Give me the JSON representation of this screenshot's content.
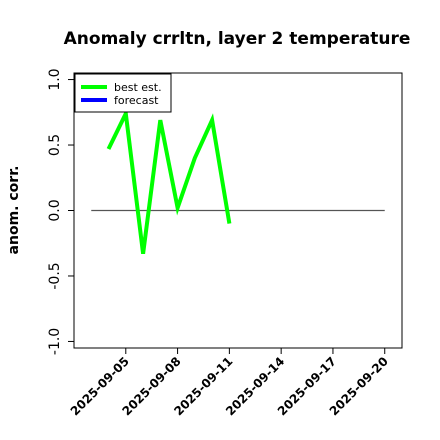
{
  "chart_data": {
    "type": "line",
    "title": "Anomaly crrltn, layer 2 temperature",
    "ylabel": "anom. corr.",
    "ylim": [
      -1.05,
      1.05
    ],
    "yticks": [
      {
        "value": -1.0,
        "label": "-1.0"
      },
      {
        "value": -0.5,
        "label": "-0.5"
      },
      {
        "value": 0.0,
        "label": "0.0"
      },
      {
        "value": 0.5,
        "label": "0.5"
      },
      {
        "value": 1.0,
        "label": "1.0"
      }
    ],
    "xlim": [
      "2025-09-02",
      "2025-09-21"
    ],
    "xticks": [
      {
        "date": "2025-09-05",
        "label": "2025-09-05",
        "color": "#000000"
      },
      {
        "date": "2025-09-08",
        "label": "2025-09-08",
        "color": "#000000"
      },
      {
        "date": "2025-09-11",
        "label": "2025-09-11",
        "color": "#228B22"
      },
      {
        "date": "2025-09-14",
        "label": "2025-09-14",
        "color": "#000000"
      },
      {
        "date": "2025-09-17",
        "label": "2025-09-17",
        "color": "#000000"
      },
      {
        "date": "2025-09-20",
        "label": "2025-09-20",
        "color": "#000000"
      }
    ],
    "reference_line": {
      "y": 0.0,
      "from": "2025-09-03",
      "to": "2025-09-20",
      "color": "#555555"
    },
    "series": [
      {
        "name": "best est.",
        "color": "#00FF00",
        "points": [
          {
            "x": "2025-09-04",
            "y": 0.47
          },
          {
            "x": "2025-09-05",
            "y": 0.74
          },
          {
            "x": "2025-09-06",
            "y": -0.33
          },
          {
            "x": "2025-09-07",
            "y": 0.69
          },
          {
            "x": "2025-09-08",
            "y": 0.02
          },
          {
            "x": "2025-09-09",
            "y": 0.4
          },
          {
            "x": "2025-09-10",
            "y": 0.69
          },
          {
            "x": "2025-09-11",
            "y": -0.1
          }
        ]
      },
      {
        "name": "forecast",
        "color": "#0000FF",
        "points": []
      }
    ],
    "legend_position": "top-left",
    "grid": false
  }
}
